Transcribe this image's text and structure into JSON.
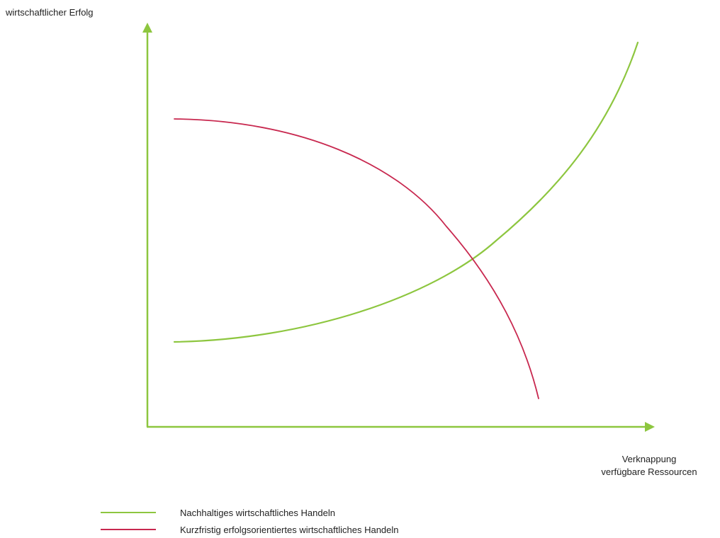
{
  "diagram": {
    "y_axis_label": "wirtschaftlicher Erfolg",
    "x_axis_label_lines": [
      "Verknappung",
      "verfügbare Ressourcen"
    ],
    "axis_color": "#8dc63f",
    "curves": [
      {
        "id": "sustainable",
        "color": "#8dc63f",
        "shape": "rising-convex",
        "legend": "Nachhaltiges wirtschaftliches Handeln"
      },
      {
        "id": "shortterm",
        "color": "#c8284f",
        "shape": "falling-concave",
        "legend": "Kurzfristig erfolgsorientiertes wirtschaftliches Handeln"
      }
    ]
  }
}
